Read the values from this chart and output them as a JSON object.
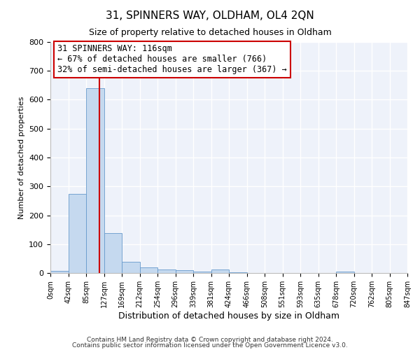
{
  "title": "31, SPINNERS WAY, OLDHAM, OL4 2QN",
  "subtitle": "Size of property relative to detached houses in Oldham",
  "xlabel": "Distribution of detached houses by size in Oldham",
  "ylabel": "Number of detached properties",
  "bar_values": [
    8,
    274,
    640,
    139,
    38,
    19,
    12,
    10,
    5,
    11,
    3,
    0,
    0,
    0,
    0,
    0,
    6,
    0,
    0,
    0
  ],
  "bar_color": "#c5d9ef",
  "bar_edge_color": "#6699cc",
  "tick_labels": [
    "0sqm",
    "42sqm",
    "85sqm",
    "127sqm",
    "169sqm",
    "212sqm",
    "254sqm",
    "296sqm",
    "339sqm",
    "381sqm",
    "424sqm",
    "466sqm",
    "508sqm",
    "551sqm",
    "593sqm",
    "635sqm",
    "678sqm",
    "720sqm",
    "762sqm",
    "805sqm",
    "847sqm"
  ],
  "ylim": [
    0,
    800
  ],
  "yticks": [
    0,
    100,
    200,
    300,
    400,
    500,
    600,
    700,
    800
  ],
  "vline_color": "#cc0000",
  "annotation_title": "31 SPINNERS WAY: 116sqm",
  "annotation_line1": "← 67% of detached houses are smaller (766)",
  "annotation_line2": "32% of semi-detached houses are larger (367) →",
  "annotation_box_color": "#ffffff",
  "annotation_box_edge": "#cc0000",
  "footnote1": "Contains HM Land Registry data © Crown copyright and database right 2024.",
  "footnote2": "Contains public sector information licensed under the Open Government Licence v3.0.",
  "background_color": "#eef2fa",
  "grid_color": "#ffffff",
  "fig_bg_color": "#ffffff"
}
